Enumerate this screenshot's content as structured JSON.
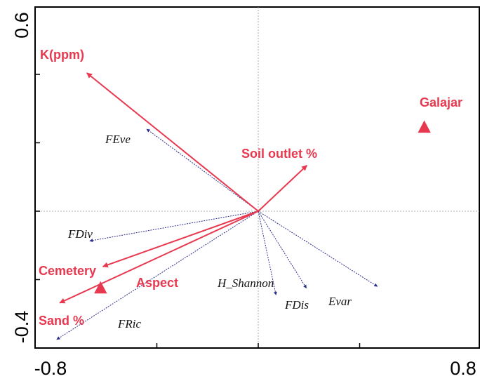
{
  "chart_data": {
    "type": "scatter",
    "subtype": "rda-biplot",
    "title": "",
    "xlabel": "",
    "ylabel": "",
    "xlim": [
      -0.8,
      0.8
    ],
    "ylim": [
      -0.4,
      0.6
    ],
    "x_ticks_labeled": [
      "-0.8",
      "0.8"
    ],
    "y_ticks_labeled": [
      "0.6",
      "-0.4"
    ],
    "y_ticks_unlabeled": [
      0.4,
      0.2,
      0.0,
      -0.2
    ],
    "origin_lines": true,
    "colors": {
      "environment": "#e8384f",
      "species": "#2c2c8c",
      "axes": "#000000"
    },
    "environment_arrows": [
      {
        "label": "K(ppm)",
        "x": -0.676,
        "y": 0.404
      },
      {
        "label": "Soil outlet %",
        "x": 0.192,
        "y": 0.134
      },
      {
        "label": "Aspect",
        "x": -0.613,
        "y": -0.162
      },
      {
        "label": "Sand %",
        "x": -0.783,
        "y": -0.268
      }
    ],
    "species_arrows": [
      {
        "label": "FEve",
        "x": -0.44,
        "y": 0.24
      },
      {
        "label": "FDiv",
        "x": -0.665,
        "y": -0.087
      },
      {
        "label": "H_Shannon",
        "x": 0.07,
        "y": -0.245
      },
      {
        "label": "FDis",
        "x": 0.19,
        "y": -0.225
      },
      {
        "label": "Evar",
        "x": 0.47,
        "y": -0.22
      },
      {
        "label": "FRic",
        "x": -0.795,
        "y": -0.375
      }
    ],
    "sample_points": [
      {
        "label": "Galajar",
        "x": 0.655,
        "y": 0.245
      },
      {
        "label": "Cemetery",
        "x": -0.622,
        "y": -0.225
      }
    ]
  }
}
